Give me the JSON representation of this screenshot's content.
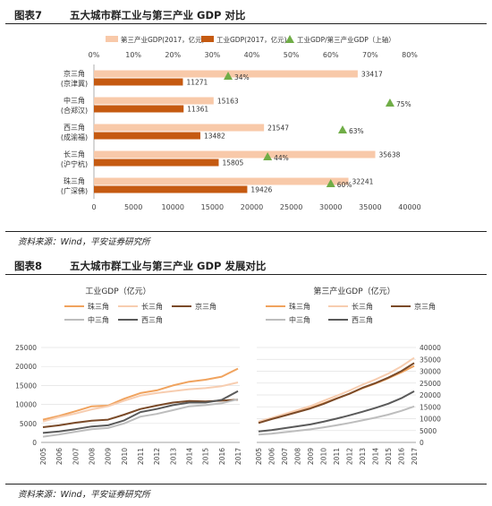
{
  "figure7": {
    "label": "图表7",
    "title": "五大城市群工业与第三产业 GDP 对比",
    "source": "资料来源：Wind，平安证券研究所"
  },
  "figure8": {
    "label": "图表8",
    "title": "五大城市群工业与第三产业 GDP 发展对比",
    "source": "资料来源：Wind，平安证券研究所"
  },
  "chart_data": [
    {
      "type": "bar",
      "orientation": "horizontal",
      "categories": [
        "京三角\n(京津冀)",
        "中三角\n(合郑汉)",
        "西三角\n(成渝福)",
        "长三角\n(沪宁杭)",
        "珠三角\n(广深佛)"
      ],
      "series": [
        {
          "name": "第三产业GDP(2017，亿元)",
          "color": "#f8c9a9",
          "values": [
            33417,
            15163,
            21547,
            35638,
            32241
          ]
        },
        {
          "name": "工业GDP(2017，亿元)",
          "color": "#c55a11",
          "values": [
            11271,
            11361,
            13482,
            15805,
            19426
          ]
        },
        {
          "name": "工业GDP/第三产业GDP（上轴）",
          "color": "#70ad47",
          "type": "scatter",
          "axis": "top",
          "values": [
            34,
            75,
            63,
            44,
            60
          ],
          "labels": [
            "34%",
            "75%",
            "63%",
            "44%",
            "60%"
          ]
        }
      ],
      "xlim": [
        0,
        40000
      ],
      "xticks": [
        "0",
        "5000",
        "10000",
        "15000",
        "20000",
        "25000",
        "30000",
        "35000",
        "40000"
      ],
      "top_xlim": [
        0,
        80
      ],
      "top_xticks": [
        "0%",
        "10%",
        "20%",
        "30%",
        "40%",
        "50%",
        "60%",
        "70%",
        "80%"
      ],
      "legend": "top"
    },
    {
      "type": "line",
      "title": "工业GDP（亿元）",
      "x": [
        "2005",
        "2006",
        "2007",
        "2008",
        "2009",
        "2010",
        "2011",
        "2012",
        "2013",
        "2014",
        "2015",
        "2016",
        "2017"
      ],
      "series": [
        {
          "name": "珠三角",
          "color": "#f0a35e",
          "values": [
            6000,
            7000,
            8200,
            9500,
            9700,
            11500,
            13000,
            13700,
            15000,
            16000,
            16500,
            17300,
            19426
          ]
        },
        {
          "name": "长三角",
          "color": "#f7cdb0",
          "values": [
            5500,
            6700,
            7600,
            8700,
            9500,
            11000,
            12300,
            13000,
            13500,
            14000,
            14300,
            14800,
            15805
          ]
        },
        {
          "name": "京三角",
          "color": "#7a4a28",
          "values": [
            4000,
            4500,
            5200,
            5700,
            6000,
            7300,
            8800,
            9700,
            10500,
            10900,
            10800,
            11000,
            11271
          ]
        },
        {
          "name": "中三角",
          "color": "#bdbdbd",
          "values": [
            1500,
            2100,
            2800,
            3500,
            3800,
            5000,
            6800,
            7500,
            8500,
            9500,
            9800,
            10300,
            11361
          ]
        },
        {
          "name": "西三角",
          "color": "#5a5a5a",
          "values": [
            2500,
            2900,
            3500,
            4200,
            4500,
            5800,
            8000,
            8800,
            9800,
            10500,
            10500,
            11200,
            13482
          ]
        }
      ],
      "ylim": [
        0,
        25000
      ],
      "yticks": [
        "0",
        "5000",
        "10000",
        "15000",
        "20000",
        "25000"
      ],
      "legend": "top"
    },
    {
      "type": "line",
      "title": "第三产业GDP（亿元）",
      "x": [
        "2005",
        "2006",
        "2007",
        "2008",
        "2009",
        "2010",
        "2011",
        "2012",
        "2013",
        "2014",
        "2015",
        "2016",
        "2017"
      ],
      "series": [
        {
          "name": "珠三角",
          "color": "#f0a35e",
          "values": [
            8500,
            10000,
            11500,
            13000,
            14500,
            16500,
            18500,
            20500,
            22800,
            24800,
            27000,
            29500,
            32241
          ]
        },
        {
          "name": "长三角",
          "color": "#f7cdb0",
          "values": [
            8800,
            10300,
            12000,
            13600,
            15300,
            17500,
            19600,
            21800,
            24300,
            26500,
            29000,
            32000,
            35638
          ]
        },
        {
          "name": "京三角",
          "color": "#7a4a28",
          "values": [
            8200,
            9800,
            11300,
            12800,
            14300,
            16200,
            18400,
            20500,
            23000,
            25000,
            27300,
            30000,
            33417
          ]
        },
        {
          "name": "中三角",
          "color": "#bdbdbd",
          "values": [
            3300,
            3700,
            4300,
            4900,
            5500,
            6300,
            7200,
            8200,
            9300,
            10400,
            11700,
            13300,
            15163
          ]
        },
        {
          "name": "西三角",
          "color": "#5a5a5a",
          "values": [
            4600,
            5200,
            6000,
            6800,
            7600,
            8700,
            10000,
            11400,
            12900,
            14500,
            16300,
            18600,
            21547
          ]
        }
      ],
      "ylim": [
        0,
        40000
      ],
      "yticks": [
        "0",
        "5000",
        "10000",
        "15000",
        "20000",
        "25000",
        "30000",
        "35000",
        "40000"
      ],
      "legend": "top"
    }
  ]
}
